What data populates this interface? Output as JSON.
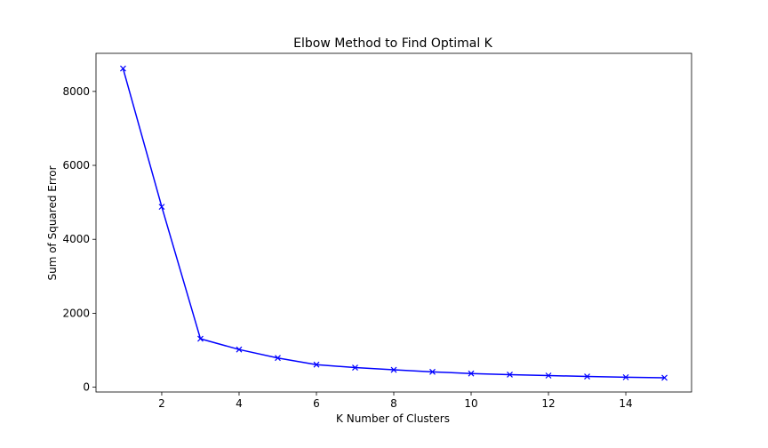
{
  "chart_data": {
    "type": "line",
    "title": "Elbow Method to Find Optimal K",
    "xlabel": "K Number of Clusters",
    "ylabel": "Sum of Squared Error",
    "x": [
      1,
      2,
      3,
      4,
      5,
      6,
      7,
      8,
      9,
      10,
      11,
      12,
      13,
      14,
      15
    ],
    "series": [
      {
        "values": [
          8620,
          4880,
          1310,
          1020,
          790,
          610,
          530,
          470,
          415,
          370,
          340,
          315,
          290,
          270,
          255
        ],
        "color": "#0000ff",
        "marker": "x"
      }
    ],
    "xlim": [
      0.3,
      15.7
    ],
    "ylim": [
      -130,
      9030
    ],
    "xticks": [
      2,
      4,
      6,
      8,
      10,
      12,
      14
    ],
    "yticks": [
      0,
      2000,
      4000,
      6000,
      8000
    ],
    "grid": false,
    "legend": "none"
  }
}
